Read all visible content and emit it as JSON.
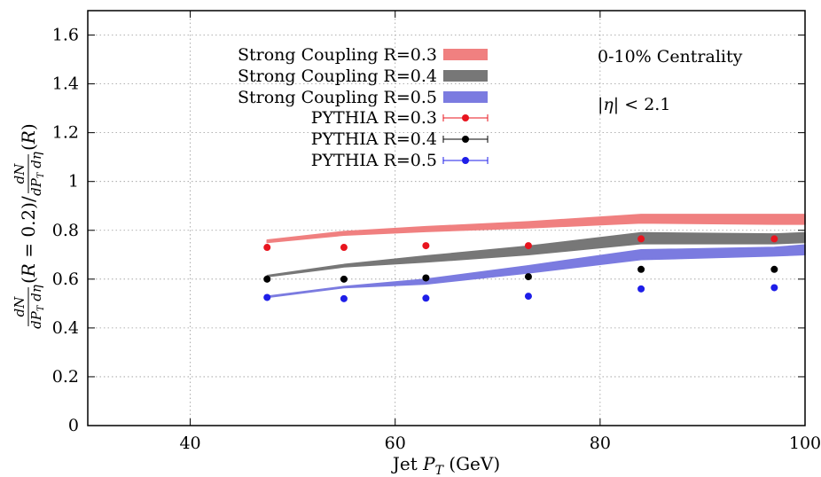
{
  "chart_data": {
    "type": "line",
    "xlabel": "Jet P_T (GeV)",
    "ylabel": "dN/dP_T dη (R = 0.2) / dN/dP_T dη (R)",
    "xlim": [
      30,
      100
    ],
    "ylim": [
      0,
      1.7
    ],
    "x_ticks": [
      "40",
      "60",
      "80",
      "100"
    ],
    "y_ticks": [
      "0",
      "0.2",
      "0.4",
      "0.6",
      "0.8",
      "1",
      "1.2",
      "1.4",
      "1.6"
    ],
    "grid": true,
    "legend_position": "top-left",
    "annotations": [
      "0-10% Centrality",
      "|η| < 2.1"
    ],
    "bands": [
      {
        "name": "Strong Coupling R=0.3",
        "color": "#f08080",
        "x": [
          47.5,
          55,
          63,
          73,
          84,
          97,
          100
        ],
        "low": [
          0.75,
          0.78,
          0.795,
          0.81,
          0.83,
          0.825,
          0.825
        ],
        "high": [
          0.76,
          0.795,
          0.815,
          0.835,
          0.865,
          0.865,
          0.865
        ]
      },
      {
        "name": "Strong Coupling R=0.4",
        "color": "#777777",
        "x": [
          47.5,
          55,
          63,
          73,
          84,
          97,
          100
        ],
        "low": [
          0.61,
          0.65,
          0.67,
          0.7,
          0.745,
          0.745,
          0.75
        ],
        "high": [
          0.615,
          0.66,
          0.695,
          0.735,
          0.79,
          0.785,
          0.79
        ]
      },
      {
        "name": "Strong Coupling R=0.5",
        "color": "#7b7be0",
        "x": [
          47.5,
          55,
          63,
          73,
          84,
          97,
          100
        ],
        "low": [
          0.525,
          0.565,
          0.58,
          0.625,
          0.68,
          0.695,
          0.7
        ],
        "high": [
          0.53,
          0.57,
          0.6,
          0.655,
          0.72,
          0.73,
          0.74
        ]
      }
    ],
    "series": [
      {
        "name": "PYTHIA R=0.3",
        "color": "#e8141e",
        "x": [
          47.5,
          55,
          63,
          73,
          84,
          97
        ],
        "values": [
          0.73,
          0.73,
          0.737,
          0.737,
          0.765,
          0.765
        ]
      },
      {
        "name": "PYTHIA R=0.4",
        "color": "#000000",
        "x": [
          47.5,
          55,
          63,
          73,
          84,
          97
        ],
        "values": [
          0.6,
          0.6,
          0.605,
          0.61,
          0.64,
          0.64
        ]
      },
      {
        "name": "PYTHIA R=0.5",
        "color": "#1e1ee8",
        "x": [
          47.5,
          55,
          63,
          73,
          84,
          97
        ],
        "values": [
          0.525,
          0.52,
          0.522,
          0.53,
          0.56,
          0.565
        ]
      }
    ]
  }
}
